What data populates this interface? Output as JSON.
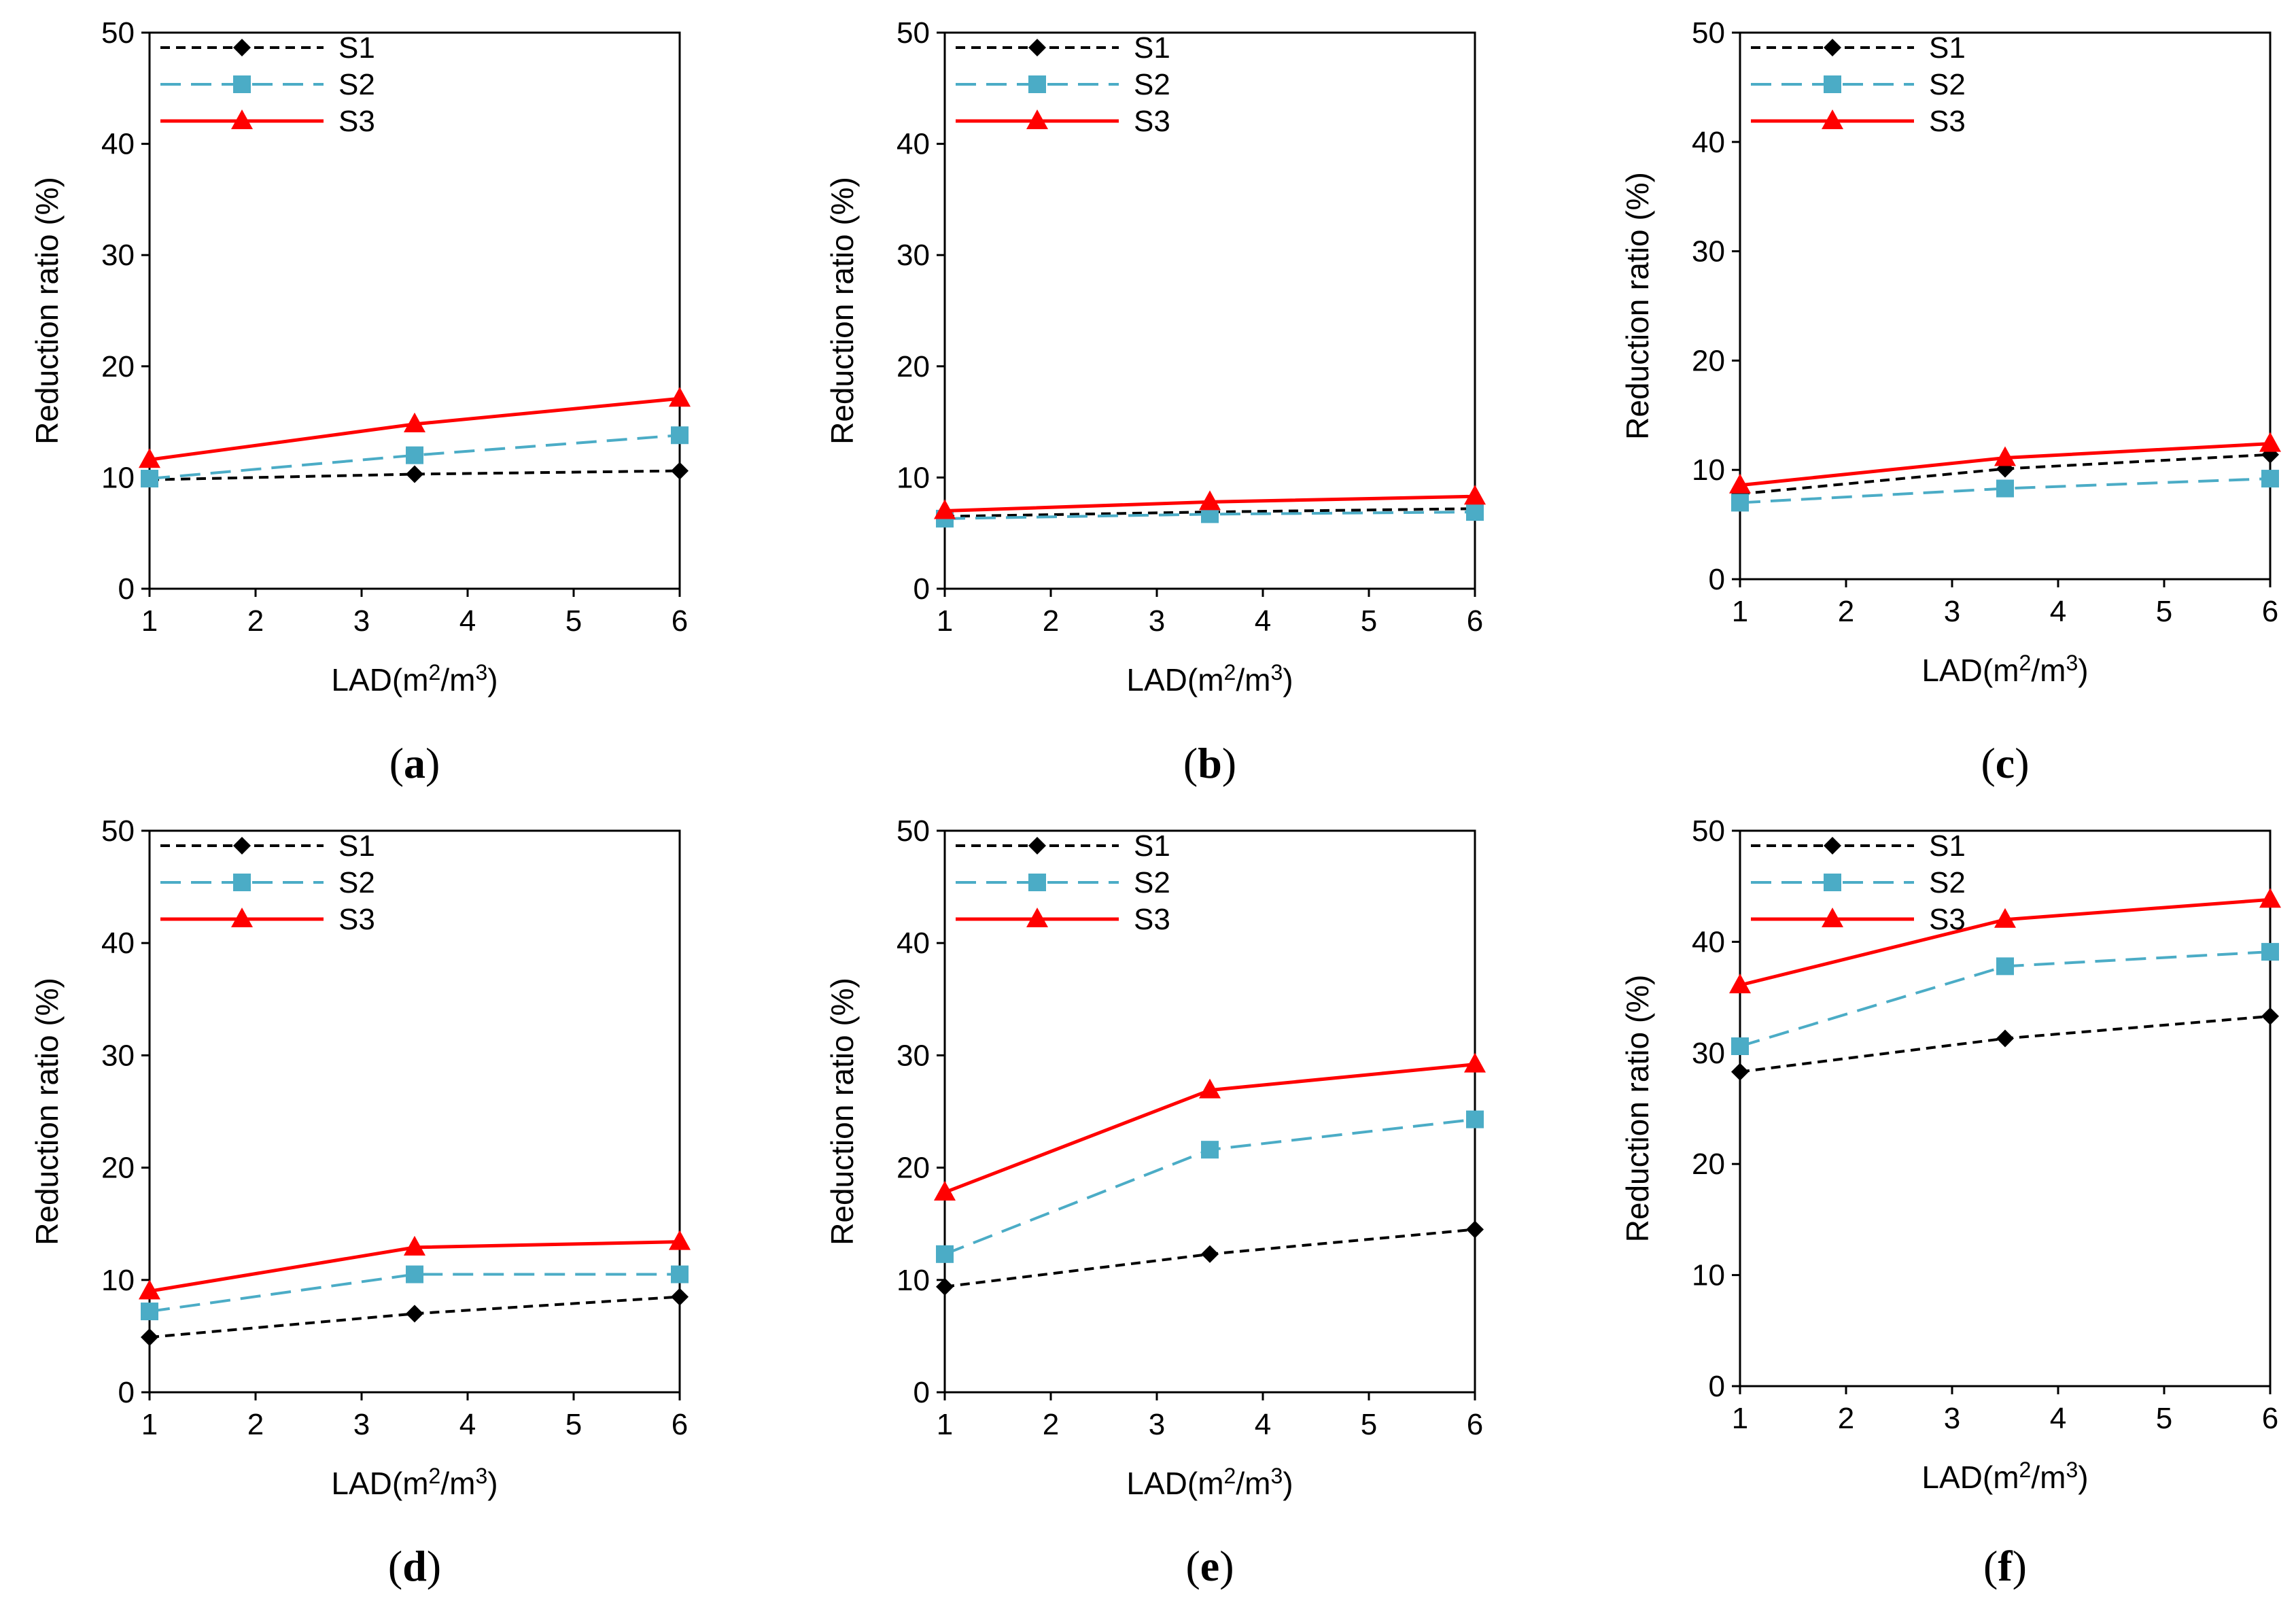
{
  "figure": {
    "series_styles": [
      {
        "name": "S1",
        "color": "#000000",
        "marker": "diamond",
        "dash": "short-dash"
      },
      {
        "name": "S2",
        "color": "#4BACC6",
        "marker": "square",
        "dash": "long-dash"
      },
      {
        "name": "S3",
        "color": "#FF0000",
        "marker": "triangle",
        "dash": "solid"
      }
    ]
  },
  "chart_data": [
    {
      "type": "line",
      "panel_label": "a",
      "xlabel": "LAD(m",
      "xlabel_sup1": "2",
      "xlabel_mid": "/m",
      "xlabel_sup2": "3",
      "xlabel_end": ")",
      "ylabel": "Reduction ratio (%)",
      "xlim": [
        1,
        6
      ],
      "ylim": [
        0,
        50
      ],
      "xticks": [
        1,
        2,
        3,
        4,
        5,
        6
      ],
      "yticks": [
        0,
        10,
        20,
        30,
        40,
        50
      ],
      "x": [
        1,
        3.5,
        6
      ],
      "series": [
        {
          "name": "S1",
          "values": [
            9.8,
            10.3,
            10.6
          ]
        },
        {
          "name": "S2",
          "values": [
            9.9,
            12.0,
            13.8
          ]
        },
        {
          "name": "S3",
          "values": [
            11.6,
            14.8,
            17.1
          ]
        }
      ],
      "legend": "top-left"
    },
    {
      "type": "line",
      "panel_label": "b",
      "xlabel": "LAD(m",
      "xlabel_sup1": "2",
      "xlabel_mid": "/m",
      "xlabel_sup2": "3",
      "xlabel_end": ")",
      "ylabel": "Reduction ratio (%)",
      "xlim": [
        1,
        6
      ],
      "ylim": [
        0,
        50
      ],
      "xticks": [
        1,
        2,
        3,
        4,
        5,
        6
      ],
      "yticks": [
        0,
        10,
        20,
        30,
        40,
        50
      ],
      "x": [
        1,
        3.5,
        6
      ],
      "series": [
        {
          "name": "S1",
          "values": [
            6.5,
            6.9,
            7.2
          ]
        },
        {
          "name": "S2",
          "values": [
            6.3,
            6.7,
            6.9
          ]
        },
        {
          "name": "S3",
          "values": [
            7.0,
            7.8,
            8.3
          ]
        }
      ],
      "legend": "top-left"
    },
    {
      "type": "line",
      "panel_label": "c",
      "xlabel": "LAD(m",
      "xlabel_sup1": "2",
      "xlabel_mid": "/m",
      "xlabel_sup2": "3",
      "xlabel_end": ")",
      "ylabel": "Reduction ratio (%)",
      "xlim": [
        1,
        6
      ],
      "ylim": [
        0,
        50
      ],
      "xticks": [
        1,
        2,
        3,
        4,
        5,
        6
      ],
      "yticks": [
        0,
        10,
        20,
        30,
        40,
        50
      ],
      "x": [
        1,
        3.5,
        6
      ],
      "series": [
        {
          "name": "S1",
          "values": [
            7.8,
            10.1,
            11.4
          ]
        },
        {
          "name": "S2",
          "values": [
            7.0,
            8.3,
            9.2
          ]
        },
        {
          "name": "S3",
          "values": [
            8.6,
            11.1,
            12.4
          ]
        }
      ],
      "legend": "top-left"
    },
    {
      "type": "line",
      "panel_label": "d",
      "xlabel": "LAD(m",
      "xlabel_sup1": "2",
      "xlabel_mid": "/m",
      "xlabel_sup2": "3",
      "xlabel_end": ")",
      "ylabel": "Reduction ratio (%)",
      "xlim": [
        1,
        6
      ],
      "ylim": [
        0,
        50
      ],
      "xticks": [
        1,
        2,
        3,
        4,
        5,
        6
      ],
      "yticks": [
        0,
        10,
        20,
        30,
        40,
        50
      ],
      "x": [
        1,
        3.5,
        6
      ],
      "series": [
        {
          "name": "S1",
          "values": [
            4.9,
            7.0,
            8.5
          ]
        },
        {
          "name": "S2",
          "values": [
            7.2,
            10.5,
            10.5
          ]
        },
        {
          "name": "S3",
          "values": [
            9.0,
            12.9,
            13.4
          ]
        }
      ],
      "legend": "top-left"
    },
    {
      "type": "line",
      "panel_label": "e",
      "xlabel": "LAD(m",
      "xlabel_sup1": "2",
      "xlabel_mid": "/m",
      "xlabel_sup2": "3",
      "xlabel_end": ")",
      "ylabel": "Reduction ratio (%)",
      "xlim": [
        1,
        6
      ],
      "ylim": [
        0,
        50
      ],
      "xticks": [
        1,
        2,
        3,
        4,
        5,
        6
      ],
      "yticks": [
        0,
        10,
        20,
        30,
        40,
        50
      ],
      "x": [
        1,
        3.5,
        6
      ],
      "series": [
        {
          "name": "S1",
          "values": [
            9.4,
            12.3,
            14.5
          ]
        },
        {
          "name": "S2",
          "values": [
            12.3,
            21.6,
            24.3
          ]
        },
        {
          "name": "S3",
          "values": [
            17.8,
            26.9,
            29.2
          ]
        }
      ],
      "legend": "top-left"
    },
    {
      "type": "line",
      "panel_label": "f",
      "xlabel": "LAD(m",
      "xlabel_sup1": "2",
      "xlabel_mid": "/m",
      "xlabel_sup2": "3",
      "xlabel_end": ")",
      "ylabel": "Reduction ratio (%)",
      "xlim": [
        1,
        6
      ],
      "ylim": [
        0,
        50
      ],
      "xticks": [
        1,
        2,
        3,
        4,
        5,
        6
      ],
      "yticks": [
        0,
        10,
        20,
        30,
        40,
        50
      ],
      "x": [
        1,
        3.5,
        6
      ],
      "series": [
        {
          "name": "S1",
          "values": [
            28.3,
            31.3,
            33.3
          ]
        },
        {
          "name": "S2",
          "values": [
            30.6,
            37.8,
            39.1
          ]
        },
        {
          "name": "S3",
          "values": [
            36.1,
            42.0,
            43.8
          ]
        }
      ],
      "legend": "top-left"
    }
  ]
}
